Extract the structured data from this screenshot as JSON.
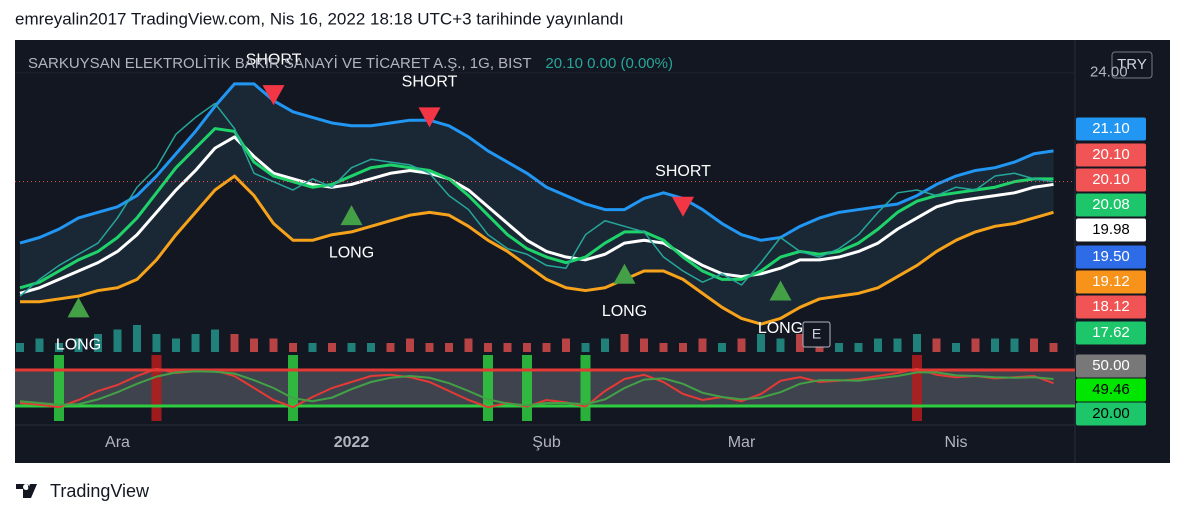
{
  "header": {
    "caption": "emreyalin2017 TradingView.com, Nis 16, 2022 18:18 UTC+3 tarihinde yayınlandı",
    "brand": "TradingView"
  },
  "chart_data": {
    "type": "line",
    "title": "SARKUYSAN ELEKTROLİTİK BAKIR SANAYİ VE TİCARET A.Ş., 1G, BIST",
    "legend_values": "20.10  0.00 (0.00%)",
    "currency": "TRY",
    "event_marker": "E",
    "categories": [
      null,
      null,
      null,
      null,
      null,
      "Ara",
      null,
      null,
      null,
      null,
      null,
      null,
      null,
      null,
      null,
      null,
      null,
      "2022",
      null,
      null,
      null,
      null,
      null,
      null,
      null,
      null,
      null,
      "Şub",
      null,
      null,
      null,
      null,
      null,
      null,
      null,
      null,
      null,
      "Mar",
      null,
      null,
      null,
      null,
      null,
      null,
      null,
      null,
      null,
      null,
      "Nis",
      null,
      null,
      null,
      null,
      null
    ],
    "ylim": [
      14,
      25.1
    ],
    "yticks": [
      {
        "value": 24,
        "label": "24.00"
      }
    ],
    "series": [
      {
        "color": "#2196f3",
        "width": 3,
        "values": [
          17.9,
          18.1,
          18.4,
          18.8,
          19.0,
          19.2,
          19.6,
          20.3,
          21.1,
          21.9,
          22.8,
          23.6,
          23.6,
          23.0,
          22.6,
          22.4,
          22.2,
          22.1,
          22.1,
          22.2,
          22.3,
          22.3,
          22.1,
          21.7,
          21.2,
          20.8,
          20.4,
          19.9,
          19.6,
          19.3,
          19.1,
          19.1,
          19.5,
          19.7,
          19.5,
          19.1,
          18.6,
          18.2,
          18.0,
          18.1,
          18.5,
          18.8,
          19.0,
          19.1,
          19.2,
          19.3,
          19.6,
          20.0,
          20.3,
          20.5,
          20.6,
          20.8,
          21.1,
          21.2
        ]
      },
      {
        "color": "#f7a21b",
        "width": 3,
        "values": [
          15.8,
          15.8,
          15.9,
          16.0,
          16.2,
          16.3,
          16.6,
          17.3,
          18.2,
          19.0,
          19.8,
          20.3,
          19.6,
          18.6,
          18.0,
          18.0,
          18.2,
          18.3,
          18.5,
          18.7,
          18.9,
          19.0,
          18.9,
          18.5,
          18.0,
          17.6,
          17.1,
          16.6,
          16.3,
          16.2,
          16.3,
          16.6,
          16.9,
          16.9,
          16.6,
          16.1,
          15.6,
          15.2,
          15.0,
          15.2,
          15.6,
          15.9,
          16.0,
          16.1,
          16.3,
          16.7,
          17.1,
          17.6,
          18.0,
          18.3,
          18.5,
          18.6,
          18.8,
          19.0
        ]
      },
      {
        "color": "#ffffff",
        "width": 3,
        "values": [
          16.1,
          16.3,
          16.6,
          16.9,
          17.2,
          17.6,
          18.2,
          19.0,
          19.8,
          20.5,
          21.3,
          21.7,
          21.0,
          20.4,
          20.2,
          20.0,
          19.9,
          20.0,
          20.2,
          20.4,
          20.5,
          20.4,
          20.2,
          19.8,
          19.2,
          18.6,
          18.0,
          17.6,
          17.4,
          17.3,
          17.5,
          17.9,
          18.0,
          17.9,
          17.5,
          17.1,
          16.8,
          16.7,
          16.8,
          17.0,
          17.3,
          17.3,
          17.4,
          17.6,
          17.9,
          18.4,
          18.8,
          19.2,
          19.4,
          19.5,
          19.6,
          19.7,
          19.9,
          20.0
        ]
      },
      {
        "color": "#1fd36b",
        "width": 3,
        "values": [
          16.3,
          16.5,
          16.9,
          17.3,
          17.6,
          18.1,
          18.8,
          19.7,
          20.6,
          21.3,
          22.0,
          21.9,
          20.8,
          20.3,
          20.1,
          19.9,
          20.0,
          20.3,
          20.6,
          20.7,
          20.6,
          20.5,
          20.2,
          19.6,
          18.9,
          18.2,
          17.7,
          17.4,
          17.2,
          17.4,
          17.9,
          18.3,
          18.3,
          18.0,
          17.4,
          16.9,
          16.6,
          16.6,
          16.9,
          17.4,
          17.6,
          17.5,
          17.6,
          17.9,
          18.4,
          19.0,
          19.4,
          19.6,
          19.7,
          19.8,
          19.9,
          20.1,
          20.2,
          20.2
        ]
      },
      {
        "color": "#26a69a",
        "width": 1.5,
        "values": [
          16.0,
          16.6,
          17.1,
          17.5,
          17.9,
          18.8,
          19.9,
          20.6,
          21.8,
          22.4,
          22.9,
          22.0,
          20.4,
          20.1,
          19.8,
          20.2,
          19.9,
          20.6,
          20.9,
          20.8,
          20.7,
          20.4,
          19.6,
          19.1,
          18.2,
          17.7,
          17.5,
          17.1,
          17.0,
          18.2,
          18.7,
          18.5,
          18.3,
          17.4,
          16.9,
          16.5,
          16.8,
          16.4,
          17.2,
          18.1,
          17.6,
          17.4,
          17.7,
          18.2,
          19.0,
          19.7,
          19.8,
          19.6,
          19.9,
          19.8,
          20.3,
          20.4,
          20.2,
          20.1
        ]
      }
    ],
    "volume": [
      2,
      3,
      2,
      3,
      4,
      5,
      6,
      4,
      3,
      4,
      5,
      4,
      3,
      3,
      2,
      2,
      2,
      2,
      2,
      2,
      3,
      2,
      2,
      3,
      2,
      2,
      2,
      2,
      3,
      2,
      3,
      4,
      3,
      2,
      2,
      3,
      2,
      3,
      4,
      3,
      4,
      3,
      2,
      2,
      3,
      3,
      4,
      3,
      2,
      3,
      3,
      3,
      3,
      2
    ],
    "volume_lim": [
      0,
      10
    ],
    "annotations": [
      {
        "text": "LONG",
        "index": 3,
        "price": 15.6,
        "color": "#43a047"
      },
      {
        "text": "SHORT",
        "index": 13,
        "price": 23.2,
        "color": "#f23645"
      },
      {
        "text": "LONG",
        "index": 17,
        "price": 18.9,
        "color": "#43a047"
      },
      {
        "text": "SHORT",
        "index": 21,
        "price": 22.4,
        "color": "#f23645"
      },
      {
        "text": "LONG",
        "index": 31,
        "price": 16.8,
        "color": "#43a047"
      },
      {
        "text": "SHORT",
        "index": 34,
        "price": 19.2,
        "color": "#f23645"
      },
      {
        "text": "LONG",
        "index": 39,
        "price": 16.2,
        "color": "#43a047"
      }
    ],
    "price_tags": [
      {
        "label": "21.10",
        "color": "#2196f3",
        "text_color": "#ffffff"
      },
      {
        "label": "20.10",
        "color": "#f05454",
        "text_color": "#ffffff"
      },
      {
        "label": "20.10",
        "color": "#f05454",
        "text_color": "#ffffff"
      },
      {
        "label": "20.08",
        "color": "#1ec66b",
        "text_color": "#ffffff"
      },
      {
        "label": "19.98",
        "color": "#ffffff",
        "text_color": "#000000"
      },
      {
        "label": "19.50",
        "color": "#2e6be6",
        "text_color": "#ffffff"
      },
      {
        "label": "19.12",
        "color": "#f7931a",
        "text_color": "#ffffff"
      },
      {
        "label": "18.12",
        "color": "#f05454",
        "text_color": "#ffffff"
      },
      {
        "label": "17.62",
        "color": "#1ec66b",
        "text_color": "#ffffff"
      }
    ],
    "oscillator": {
      "ylim": [
        0,
        100
      ],
      "levels": [
        {
          "value": 80,
          "color": "#e53935"
        },
        {
          "value": 20,
          "color": "#2ecc40"
        }
      ],
      "series": [
        {
          "color": "#e53935",
          "values": [
            25,
            22,
            18,
            30,
            45,
            55,
            70,
            82,
            75,
            78,
            79,
            70,
            50,
            30,
            18,
            35,
            50,
            60,
            70,
            72,
            68,
            60,
            45,
            30,
            18,
            25,
            19,
            30,
            26,
            19,
            45,
            65,
            72,
            60,
            40,
            30,
            35,
            28,
            40,
            62,
            68,
            60,
            62,
            65,
            70,
            75,
            82,
            72,
            68,
            70,
            66,
            68,
            70,
            58
          ]
        },
        {
          "color": "#43a047",
          "values": [
            28,
            25,
            22,
            23,
            31,
            43,
            57,
            69,
            76,
            78,
            77,
            74,
            63,
            50,
            33,
            28,
            34,
            48,
            60,
            67,
            70,
            67,
            58,
            45,
            31,
            24,
            21,
            25,
            25,
            23,
            31,
            50,
            64,
            66,
            57,
            42,
            35,
            31,
            34,
            43,
            57,
            63,
            63,
            62,
            66,
            70,
            76,
            76,
            71,
            70,
            68,
            67,
            68,
            65
          ]
        }
      ],
      "tags": [
        {
          "label": "50.00",
          "color": "#787878",
          "text_color": "#ffffff"
        },
        {
          "label": "49.46",
          "color": "#00e600",
          "text_color": "#000000"
        },
        {
          "label": "20.00",
          "color": "#1ec66b",
          "text_color": "#000000"
        }
      ]
    }
  }
}
